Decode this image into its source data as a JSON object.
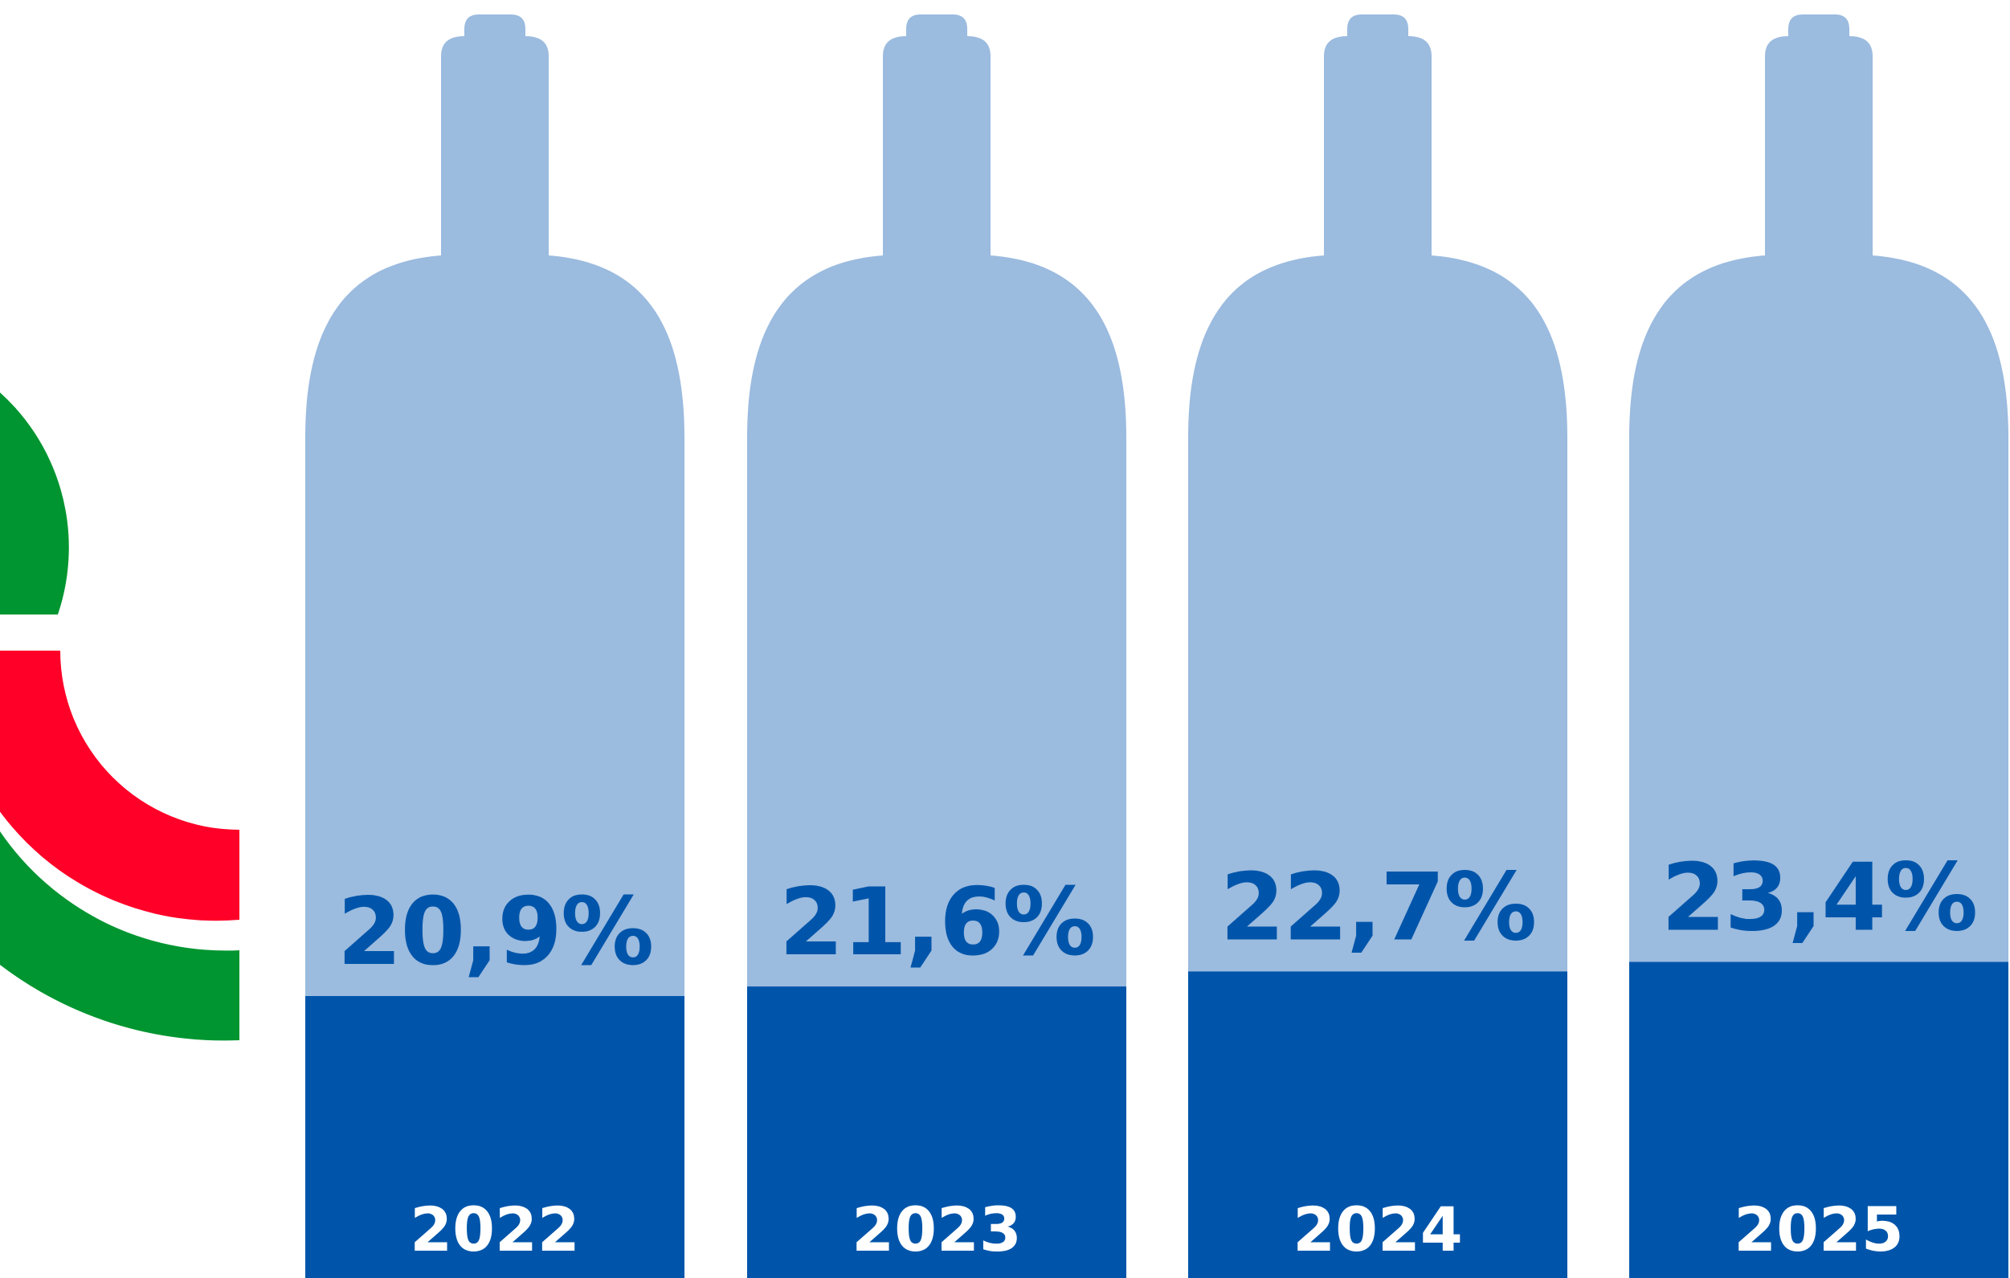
{
  "chart_data": {
    "type": "bar",
    "categories": [
      "2022",
      "2023",
      "2024",
      "2025"
    ],
    "values": [
      20.9,
      21.6,
      22.7,
      23.4
    ],
    "value_labels": [
      "20,9%",
      "21,6%",
      "22,7%",
      "23,4%"
    ],
    "unit": "%",
    "title": "",
    "xlabel": "",
    "ylabel": "",
    "ylim": [
      0,
      100
    ],
    "grid": false
  },
  "colors": {
    "bottle": "#9bbbdf",
    "fill": "#0055aa",
    "value_text": "#0055aa",
    "year_text": "#ffffff",
    "logo_green": "#009530",
    "logo_red": "#ff0028"
  },
  "logo": {
    "name": "green-red-arc-logo"
  }
}
